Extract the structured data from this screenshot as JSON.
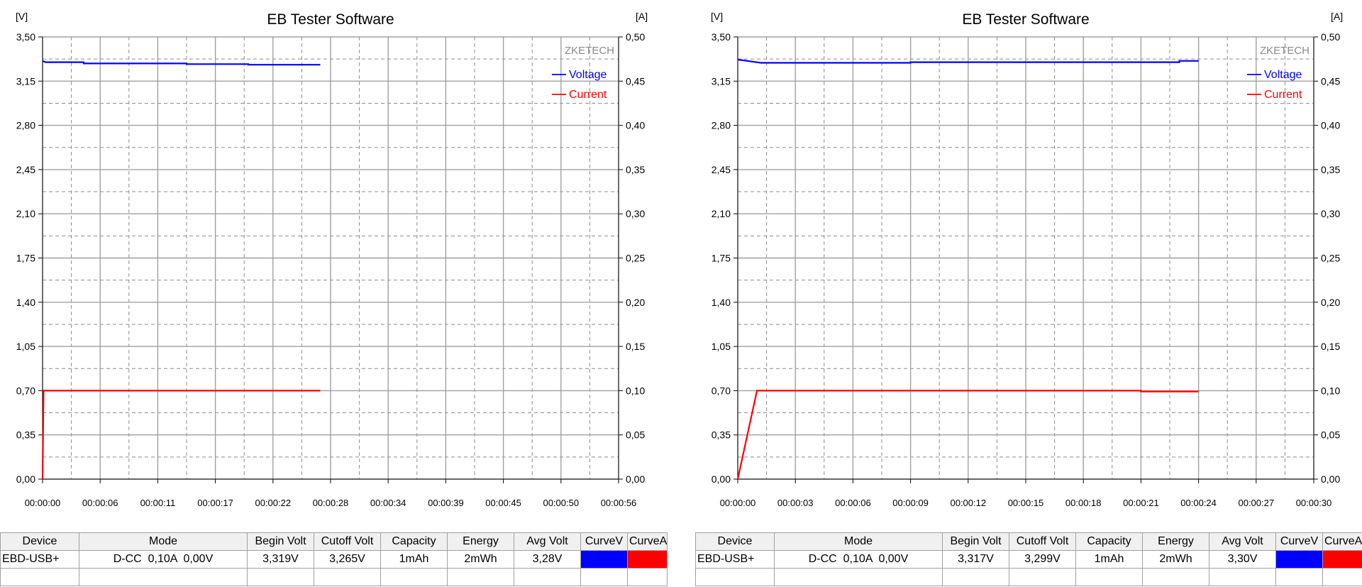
{
  "chart_data": [
    {
      "type": "line",
      "title": "EB Tester Software",
      "watermark": "ZKETECH",
      "y_left_unit": "[V]",
      "y_right_unit": "[A]",
      "ylim_left": [
        0,
        3.5
      ],
      "ylim_right": [
        0,
        0.5
      ],
      "y_left_ticks": [
        "3,50",
        "3,15",
        "2,80",
        "2,45",
        "2,10",
        "1,75",
        "1,40",
        "1,05",
        "0,70",
        "0,35",
        "0,00"
      ],
      "y_right_ticks": [
        "0,50",
        "0,45",
        "0,40",
        "0,35",
        "0,30",
        "0,25",
        "0,20",
        "0,15",
        "0,10",
        "0,05",
        "0,00"
      ],
      "xlim": [
        0,
        56
      ],
      "x_ticks": [
        "00:00:00",
        "00:00:06",
        "00:00:11",
        "00:00:17",
        "00:00:22",
        "00:00:28",
        "00:00:34",
        "00:00:39",
        "00:00:45",
        "00:00:50",
        "00:00:56"
      ],
      "grid": true,
      "legend_position": "top-right",
      "series": [
        {
          "name": "Voltage",
          "color": "#0000ff",
          "axis": "left",
          "x": [
            0,
            0.3,
            4,
            4,
            14,
            14,
            20,
            20,
            27
          ],
          "y": [
            3.31,
            3.3,
            3.3,
            3.29,
            3.29,
            3.285,
            3.285,
            3.28,
            3.28
          ]
        },
        {
          "name": "Current",
          "color": "#ff0000",
          "axis": "right",
          "x": [
            0,
            0.1,
            27
          ],
          "y": [
            0,
            0.1,
            0.1
          ]
        }
      ],
      "table": {
        "headers": [
          "Device",
          "Mode",
          "Begin Volt",
          "Cutoff Volt",
          "Capacity",
          "Energy",
          "Avg Volt",
          "CurveV",
          "CurveA"
        ],
        "row": [
          "EBD-USB+",
          "D-CC  0,10A  0,00V",
          "3,319V",
          "3,265V",
          "1mAh",
          "2mWh",
          "3,28V"
        ],
        "curve_v_color": "#0000ff",
        "curve_a_color": "#ff0000"
      }
    },
    {
      "type": "line",
      "title": "EB Tester Software",
      "watermark": "ZKETECH",
      "y_left_unit": "[V]",
      "y_right_unit": "[A]",
      "ylim_left": [
        0,
        3.5
      ],
      "ylim_right": [
        0,
        0.5
      ],
      "y_left_ticks": [
        "3,50",
        "3,15",
        "2,80",
        "2,45",
        "2,10",
        "1,75",
        "1,40",
        "1,05",
        "0,70",
        "0,35",
        "0,00"
      ],
      "y_right_ticks": [
        "0,50",
        "0,45",
        "0,40",
        "0,35",
        "0,30",
        "0,25",
        "0,20",
        "0,15",
        "0,10",
        "0,05",
        "0,00"
      ],
      "xlim": [
        0,
        30
      ],
      "x_ticks": [
        "00:00:00",
        "00:00:03",
        "00:00:06",
        "00:00:09",
        "00:00:12",
        "00:00:15",
        "00:00:18",
        "00:00:21",
        "00:00:24",
        "00:00:27",
        "00:00:30"
      ],
      "grid": true,
      "legend_position": "top-right",
      "series": [
        {
          "name": "Voltage",
          "color": "#0000ff",
          "axis": "left",
          "x": [
            0,
            0.5,
            1.2,
            9,
            9,
            23,
            23,
            24
          ],
          "y": [
            3.32,
            3.31,
            3.295,
            3.295,
            3.3,
            3.3,
            3.31,
            3.31
          ]
        },
        {
          "name": "Current",
          "color": "#ff0000",
          "axis": "right",
          "x": [
            0,
            1.0,
            21,
            21,
            24
          ],
          "y": [
            0,
            0.1,
            0.1,
            0.099,
            0.099
          ]
        }
      ],
      "table": {
        "headers": [
          "Device",
          "Mode",
          "Begin Volt",
          "Cutoff Volt",
          "Capacity",
          "Energy",
          "Avg Volt",
          "CurveV",
          "CurveA"
        ],
        "row": [
          "EBD-USB+",
          "D-CC  0,10A  0,00V",
          "3,317V",
          "3,299V",
          "1mAh",
          "2mWh",
          "3,30V"
        ],
        "curve_v_color": "#0000ff",
        "curve_a_color": "#ff0000"
      }
    }
  ]
}
